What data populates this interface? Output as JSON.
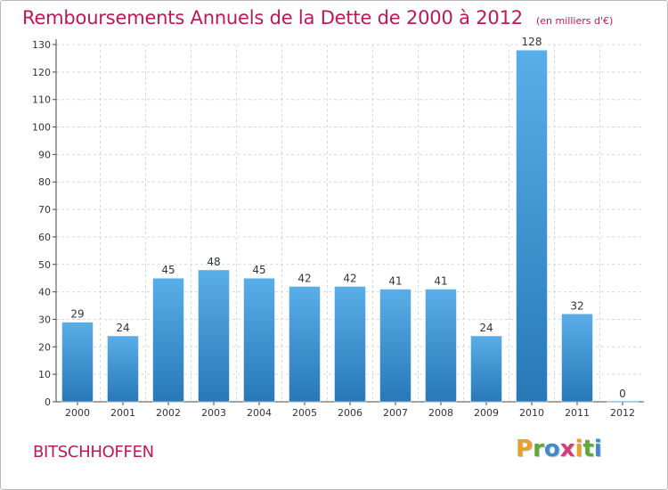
{
  "title": "Remboursements Annuels de la Dette de 2000 à 2012",
  "subtitle": "(en milliers d'€)",
  "footer_name": "BITSCHHOFFEN",
  "logo": {
    "letters": [
      "P",
      "r",
      "o",
      "x",
      "i",
      "t",
      "i"
    ],
    "colors": [
      "#e8a02a",
      "#5fa83c",
      "#3d8ad1",
      "#d83a7c",
      "#e8a02a",
      "#5fa83c",
      "#3d8ad1"
    ]
  },
  "colors": {
    "bar_light": "#5aaee8",
    "bar_dark": "#2878b8",
    "grid": "#d8d8d8",
    "title": "#c0165a"
  },
  "chart_data": {
    "type": "bar",
    "categories": [
      "2000",
      "2001",
      "2002",
      "2003",
      "2004",
      "2005",
      "2006",
      "2007",
      "2008",
      "2009",
      "2010",
      "2011",
      "2012"
    ],
    "values": [
      29,
      24,
      45,
      48,
      45,
      42,
      42,
      41,
      41,
      24,
      128,
      32,
      0
    ],
    "ylim": [
      0,
      130
    ],
    "yticks": [
      0,
      10,
      20,
      30,
      40,
      50,
      60,
      70,
      80,
      90,
      100,
      110,
      120,
      130
    ],
    "grid": true
  }
}
